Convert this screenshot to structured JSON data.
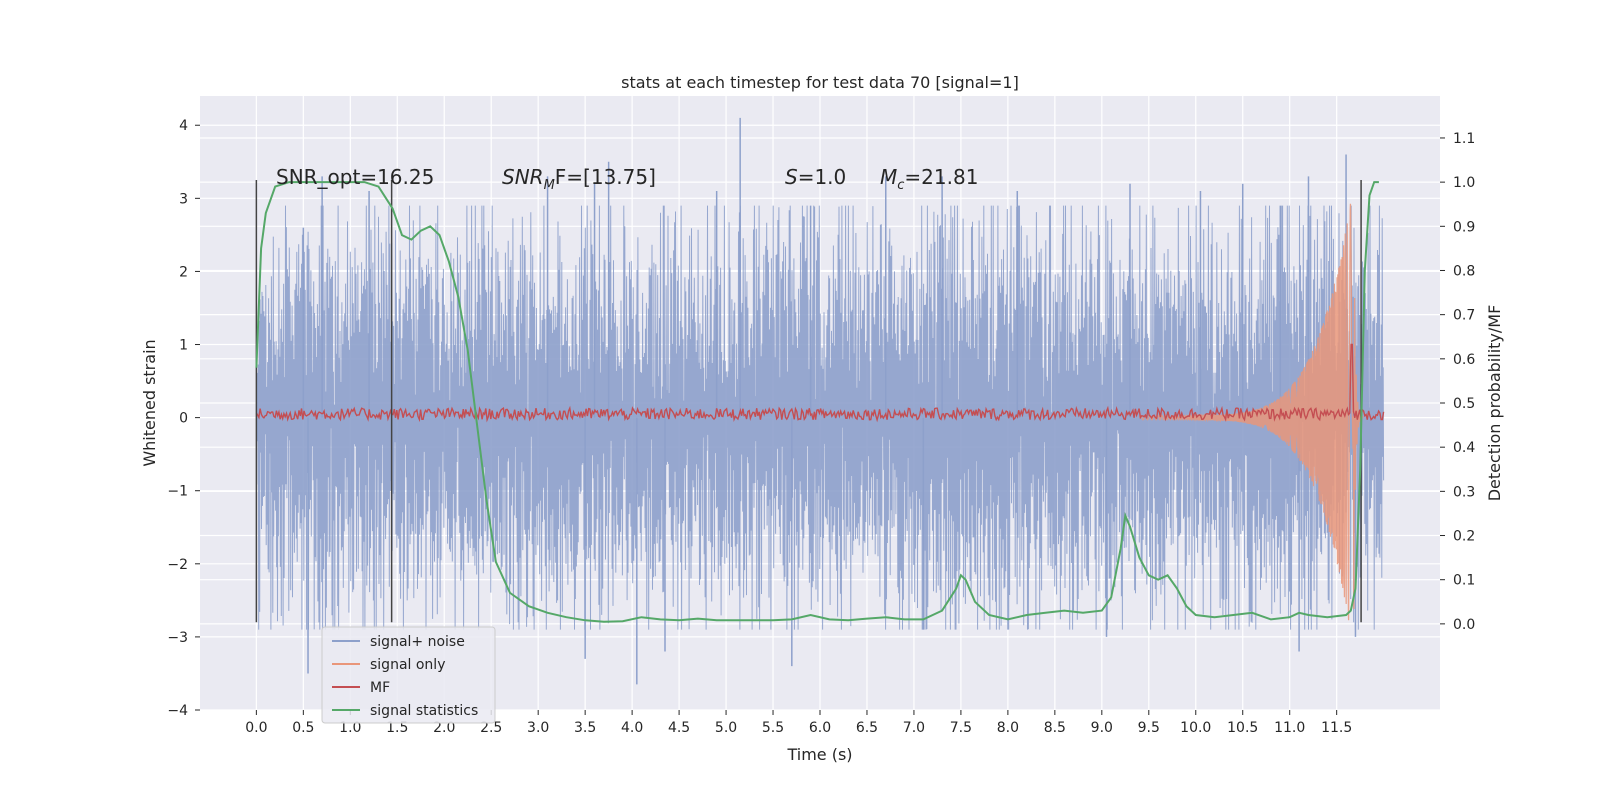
{
  "chart_data": {
    "type": "line",
    "title": "stats at each timestep for test data 70 [signal=1]",
    "xlabel": "Time (s)",
    "ylabel": "Whitened strain",
    "y2label": "Detection probability/MF",
    "xlim": [
      -0.6,
      12.6
    ],
    "ylim": [
      -4.0,
      4.4
    ],
    "y2lim": [
      -0.195,
      1.195
    ],
    "xticks": [
      0.0,
      0.5,
      1.0,
      1.5,
      2.0,
      2.5,
      3.0,
      3.5,
      4.0,
      4.5,
      5.0,
      5.5,
      6.0,
      6.5,
      7.0,
      7.5,
      8.0,
      8.5,
      9.0,
      9.5,
      10.0,
      10.5,
      11.0,
      11.5
    ],
    "xtick_labels": [
      "0.0",
      "0.5",
      "1.0",
      "1.5",
      "2.0",
      "2.5",
      "3.0",
      "3.5",
      "4.0",
      "4.5",
      "5.0",
      "5.5",
      "6.0",
      "6.5",
      "7.0",
      "7.5",
      "8.0",
      "8.5",
      "9.0",
      "9.5",
      "10.0",
      "10.5",
      "11.0",
      "11.5"
    ],
    "yticks": [
      -4,
      -3,
      -2,
      -1,
      0,
      1,
      2,
      3,
      4
    ],
    "ytick_labels": [
      "−4",
      "−3",
      "−2",
      "−1",
      "0",
      "1",
      "2",
      "3",
      "4"
    ],
    "y2ticks": [
      0.0,
      0.1,
      0.2,
      0.3,
      0.4,
      0.5,
      0.6,
      0.7,
      0.8,
      0.9,
      1.0,
      1.1
    ],
    "y2tick_labels": [
      "0.0",
      "0.1",
      "0.2",
      "0.3",
      "0.4",
      "0.5",
      "0.6",
      "0.7",
      "0.8",
      "0.9",
      "1.0",
      "1.1"
    ],
    "grid": true,
    "legend_position": "lower-left",
    "annotations": {
      "snr_opt": "SNR_opt=16.25",
      "snr_mf_prefix": "SNR",
      "snr_mf_sub": "M",
      "snr_mf_suffix": "F=[13.75]",
      "s_letter": "S",
      "s_value": "=1.0",
      "mc_letter": "M",
      "mc_sub": "c",
      "mc_value": "=21.81"
    },
    "vertical_markers": [
      {
        "x": 0.0,
        "ymin": -2.8,
        "ymax": 3.25
      },
      {
        "x": 1.44,
        "ymin": -2.8,
        "ymax": 3.25
      },
      {
        "x": 11.76,
        "ymin": -2.8,
        "ymax": 3.25
      }
    ],
    "noise": {
      "x_start": 0.0,
      "x_end": 12.0,
      "samples": 2400,
      "body_amp": 1.75,
      "seed": 7
    },
    "series": [
      {
        "name": "signal+ noise",
        "color": "#8da0cb",
        "axis": "left",
        "peaks": [
          [
            0.5,
            2.6
          ],
          [
            0.7,
            3.3
          ],
          [
            1.2,
            3.1
          ],
          [
            3.1,
            3.3
          ],
          [
            3.6,
            3.2
          ],
          [
            3.75,
            3.5
          ],
          [
            4.9,
            3.1
          ],
          [
            5.15,
            4.1
          ],
          [
            5.9,
            2.9
          ],
          [
            6.7,
            3.3
          ],
          [
            7.3,
            3.3
          ],
          [
            8.1,
            3.1
          ],
          [
            9.3,
            3.2
          ],
          [
            10.05,
            3.1
          ],
          [
            10.5,
            3.2
          ],
          [
            10.9,
            2.9
          ],
          [
            11.2,
            3.3
          ],
          [
            11.6,
            3.6
          ],
          [
            0.55,
            -3.5
          ],
          [
            3.5,
            -3.3
          ],
          [
            4.05,
            -3.65
          ],
          [
            4.35,
            -3.2
          ],
          [
            5.7,
            -3.4
          ],
          [
            7.1,
            -2.9
          ],
          [
            9.05,
            -3.0
          ],
          [
            11.1,
            -3.2
          ],
          [
            11.7,
            -3.0
          ]
        ]
      },
      {
        "name": "signal only",
        "color": "#e9967a",
        "axis": "left",
        "chirp": {
          "t_start": 9.4,
          "t_merge": 11.68,
          "t_end": 11.78,
          "f_min": 20,
          "f_max": 60,
          "amp_min": 0.03,
          "amp_max": 3.2
        }
      },
      {
        "name": "MF",
        "color": "#c44e52",
        "axis": "left",
        "baseline": 0.05,
        "ripple": 0.08,
        "spike": {
          "x": 11.66,
          "y": 1.0
        }
      },
      {
        "name": "signal statistics",
        "color": "#55a868",
        "axis": "right",
        "x": [
          0.0,
          0.05,
          0.1,
          0.2,
          0.35,
          0.5,
          0.7,
          0.9,
          1.0,
          1.15,
          1.3,
          1.45,
          1.55,
          1.65,
          1.75,
          1.85,
          1.95,
          2.05,
          2.15,
          2.25,
          2.35,
          2.45,
          2.55,
          2.7,
          2.9,
          3.1,
          3.3,
          3.5,
          3.7,
          3.9,
          4.1,
          4.3,
          4.5,
          4.7,
          4.9,
          5.1,
          5.3,
          5.5,
          5.7,
          5.9,
          6.1,
          6.3,
          6.5,
          6.7,
          6.9,
          7.1,
          7.3,
          7.45,
          7.5,
          7.55,
          7.65,
          7.8,
          8.0,
          8.2,
          8.4,
          8.6,
          8.8,
          9.0,
          9.1,
          9.2,
          9.25,
          9.3,
          9.4,
          9.5,
          9.6,
          9.7,
          9.8,
          9.9,
          10.0,
          10.2,
          10.4,
          10.6,
          10.8,
          11.0,
          11.1,
          11.2,
          11.4,
          11.6,
          11.65,
          11.7,
          11.75,
          11.8,
          11.85,
          11.9,
          11.95
        ],
        "y": [
          0.58,
          0.85,
          0.93,
          0.99,
          1.0,
          1.0,
          1.0,
          1.0,
          1.0,
          1.0,
          0.99,
          0.94,
          0.88,
          0.87,
          0.89,
          0.9,
          0.88,
          0.82,
          0.74,
          0.62,
          0.45,
          0.28,
          0.14,
          0.07,
          0.04,
          0.025,
          0.015,
          0.008,
          0.005,
          0.006,
          0.015,
          0.01,
          0.008,
          0.012,
          0.008,
          0.008,
          0.008,
          0.008,
          0.01,
          0.02,
          0.01,
          0.008,
          0.012,
          0.015,
          0.01,
          0.01,
          0.03,
          0.08,
          0.11,
          0.1,
          0.05,
          0.02,
          0.01,
          0.02,
          0.025,
          0.03,
          0.025,
          0.03,
          0.06,
          0.17,
          0.245,
          0.22,
          0.15,
          0.11,
          0.1,
          0.11,
          0.08,
          0.04,
          0.02,
          0.015,
          0.02,
          0.025,
          0.01,
          0.015,
          0.025,
          0.02,
          0.015,
          0.02,
          0.03,
          0.08,
          0.35,
          0.8,
          0.97,
          1.0,
          1.0
        ]
      }
    ]
  }
}
